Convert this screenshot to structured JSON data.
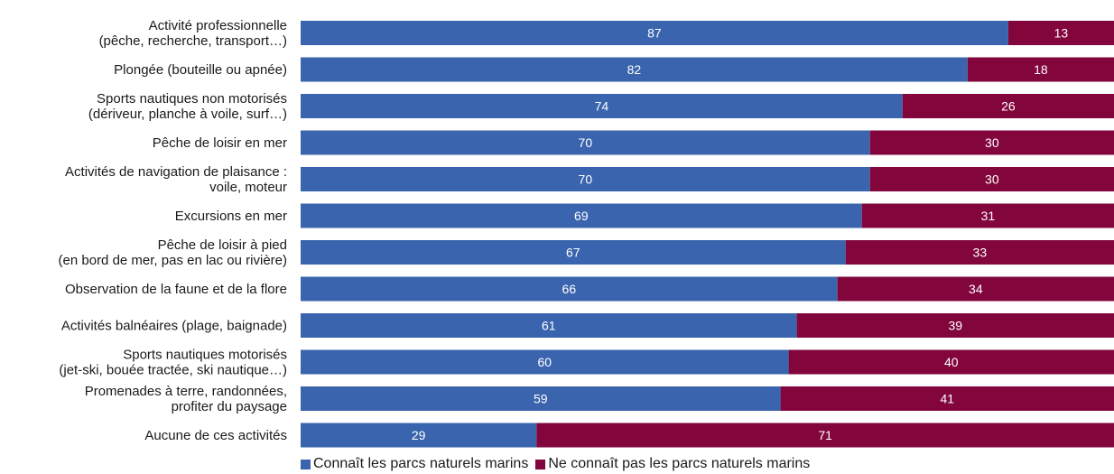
{
  "chart_data": {
    "type": "bar",
    "orientation": "horizontal",
    "stacked": true,
    "categories": [
      [
        "Activité professionnelle",
        "(pêche, recherche, transport…)"
      ],
      [
        "Plongée (bouteille ou apnée)"
      ],
      [
        "Sports nautiques non motorisés",
        "(dériveur, planche à voile, surf…)"
      ],
      [
        "Pêche de loisir en mer"
      ],
      [
        "Activités de navigation de plaisance :",
        "voile, moteur"
      ],
      [
        "Excursions en mer"
      ],
      [
        "Pêche de loisir à pied",
        "(en bord de mer, pas en lac ou rivière)"
      ],
      [
        "Observation de la faune et de la flore"
      ],
      [
        "Activités balnéaires (plage, baignade)"
      ],
      [
        "Sports nautiques motorisés",
        "(jet-ski, bouée tractée, ski nautique…)"
      ],
      [
        "Promenades à terre, randonnées,",
        "profiter du paysage"
      ],
      [
        "Aucune de ces activités"
      ]
    ],
    "series": [
      {
        "name": "Connaît les parcs naturels marins",
        "color": "#3a64ad",
        "values": [
          87,
          82,
          74,
          70,
          70,
          69,
          67,
          66,
          61,
          60,
          59,
          29
        ]
      },
      {
        "name": "Ne connaît pas les parcs naturels marins",
        "color": "#82063c",
        "values": [
          13,
          18,
          26,
          30,
          30,
          31,
          33,
          34,
          39,
          40,
          41,
          71
        ]
      }
    ],
    "xlim": [
      0,
      100
    ],
    "grid": false,
    "legend_position": "bottom"
  }
}
